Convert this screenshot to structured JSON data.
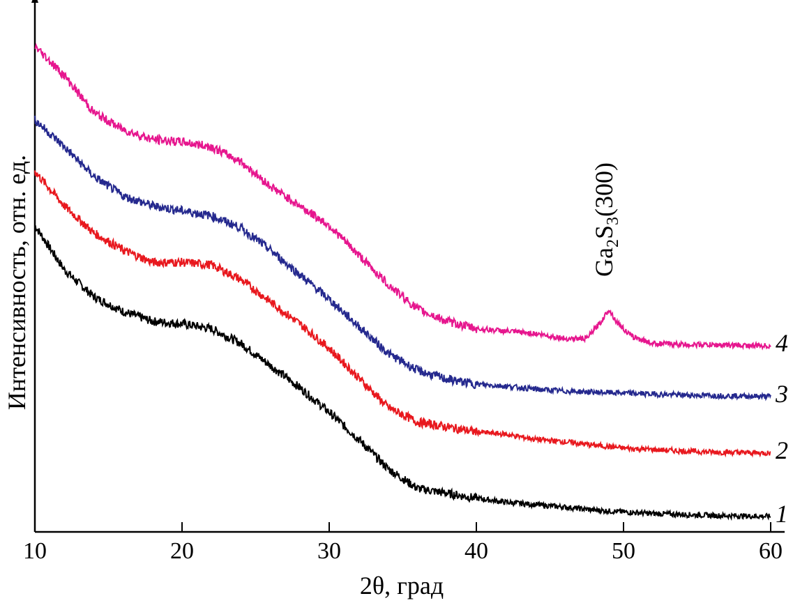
{
  "chart_data": {
    "type": "line",
    "title": "",
    "xlabel": "2θ, град",
    "ylabel": "Интенсивность, отн. ед.",
    "xlim": [
      10,
      61
    ],
    "ylim": [
      0,
      100
    ],
    "xticks": [
      10,
      20,
      30,
      40,
      50,
      60
    ],
    "xtick_labels": [
      "10",
      "20",
      "30",
      "40",
      "50",
      "60"
    ],
    "yticks_shown": false,
    "grid": false,
    "annotations": [
      {
        "text": "Ga",
        "sub1": "2",
        "mid": "S",
        "sub2": "3",
        "tail": "(300)",
        "x": 49.0,
        "y": 48
      }
    ],
    "series": [
      {
        "name": "1",
        "color": "#000000",
        "x": [
          10,
          12,
          14,
          16,
          18,
          20,
          22,
          24,
          26,
          28,
          30,
          32,
          34,
          36,
          38,
          40,
          42,
          44,
          46,
          48,
          50,
          52,
          54,
          56,
          58,
          60
        ],
        "values": [
          60.5,
          51.5,
          46,
          43,
          41,
          40.5,
          39.5,
          36.5,
          32,
          27.5,
          22.5,
          17,
          11,
          7,
          6,
          5,
          4.2,
          3.7,
          3.2,
          2.6,
          2.2,
          1.9,
          1.7,
          1.5,
          1.4,
          1.3
        ]
      },
      {
        "name": "2",
        "color": "#e8181e",
        "x": [
          10,
          12,
          14,
          16,
          18,
          20,
          22,
          24,
          26,
          28,
          30,
          32,
          34,
          36,
          38,
          40,
          42,
          44,
          46,
          48,
          50,
          52,
          54,
          56,
          58,
          60
        ],
        "values": [
          71.5,
          64.5,
          59,
          55.5,
          53,
          53,
          52.5,
          49.5,
          45,
          40.5,
          35.5,
          29.5,
          23.5,
          20.5,
          19.5,
          18.5,
          18,
          17,
          16.5,
          15.8,
          15.2,
          14.9,
          14.6,
          14.4,
          14.3,
          14.2
        ]
      },
      {
        "name": "3",
        "color": "#25298e",
        "x": [
          10,
          12,
          14,
          16,
          18,
          20,
          22,
          24,
          26,
          28,
          30,
          32,
          34,
          36,
          38,
          40,
          42,
          44,
          46,
          48,
          50,
          52,
          54,
          56,
          58,
          60
        ],
        "values": [
          82,
          76.5,
          70.5,
          66.5,
          64.5,
          63.5,
          62.5,
          60,
          55.5,
          50.5,
          45.5,
          40,
          34.5,
          31,
          29.2,
          28.2,
          27.8,
          27.2,
          26.8,
          26.6,
          26.4,
          26.2,
          26.0,
          25.9,
          25.8,
          25.7
        ]
      },
      {
        "name": "4",
        "color": "#e6168e",
        "x": [
          10,
          12,
          14,
          16,
          18,
          20,
          22,
          24,
          26,
          28,
          30,
          32,
          34,
          36,
          38,
          40,
          42,
          44,
          46,
          47.5,
          48.5,
          49.0,
          49.5,
          50.5,
          51.5,
          52,
          54,
          56,
          58,
          60
        ],
        "values": [
          97,
          91,
          83.5,
          80,
          78,
          77.5,
          76.5,
          73.5,
          68.5,
          64.5,
          60.5,
          54.5,
          48.5,
          43.5,
          41,
          39.5,
          39,
          38.5,
          37.5,
          37.5,
          41,
          43.5,
          41,
          38,
          37,
          36.5,
          36.3,
          36.2,
          36.1,
          36.0
        ]
      }
    ]
  }
}
